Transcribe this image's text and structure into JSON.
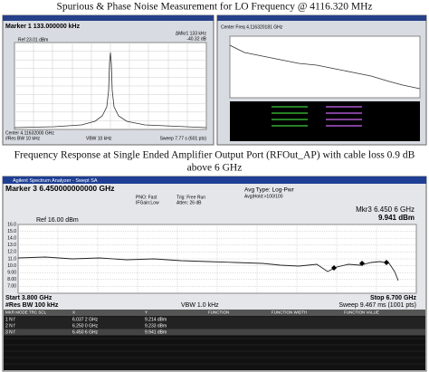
{
  "heading": "Spurious & Phase Noise Measurement for LO Frequency @ 4116.320 MHz",
  "left_screen": {
    "marker": "Marker 1 133.000000 kHz",
    "ref": "Ref 23.01 dBm",
    "delta": "ΔMkr1 133 kHz",
    "delta_value": "-40.32 dB",
    "center": "Center 4.11632000 GHz",
    "rbw": "#Res BW 10 kHz",
    "vbw": "VBW 10 kHz",
    "sweep": "Sweep 7.77 s (601 pts)"
  },
  "right_screen": {
    "marker": "Center Freq 4.116320181 GHz"
  },
  "caption": {
    "line1": "Frequency Response at Single Ended Amplifier Output Port (RFOut_AP) with cable loss 0.9 dB",
    "line2": "above 6 GHz"
  },
  "analyzer": {
    "title_bar": "Agilent Spectrum Analyzer - Swept SA",
    "marker": "Marker 3 6.450000000000 GHz",
    "pno": "PNO: Fast",
    "ifgain": "IFGain:Low",
    "trig": "Trig: Free Run",
    "atten": "Atten: 26 dB",
    "avg_type": "Avg Type: Log-Pwr",
    "avg_hold": "Avg|Hold:>100/100",
    "mkr_readout": "Mkr3 6.450 6 GHz",
    "mkr_value": "9.941 dBm",
    "ref": "Ref 16.00 dBm",
    "y_labels": [
      "16.0",
      "15.0",
      "14.0",
      "13.0",
      "12.0",
      "11.0",
      "10.0",
      "9.00",
      "8.00",
      "7.00"
    ],
    "start": "Start 3.800 GHz",
    "stop": "Stop 6.700 GHz",
    "rbw": "#Res BW 100 kHz",
    "vbw": "VBW 1.0 kHz",
    "sweep": "Sweep 9.467 ms (1001 pts)",
    "table": {
      "header": [
        "MKR MODE TRC SCL",
        "X",
        "Y",
        "FUNCTION",
        "FUNCTION WIDTH",
        "FUNCTION VALUE"
      ],
      "rows": [
        [
          "1  N  f",
          "6.037 2 GHz",
          "9.214 dBm"
        ],
        [
          "2  N  f",
          "6.250 0 GHz",
          "9.233 dBm"
        ],
        [
          "3  N  f",
          "6.450 6 GHz",
          "9.941 dBm"
        ]
      ]
    }
  }
}
